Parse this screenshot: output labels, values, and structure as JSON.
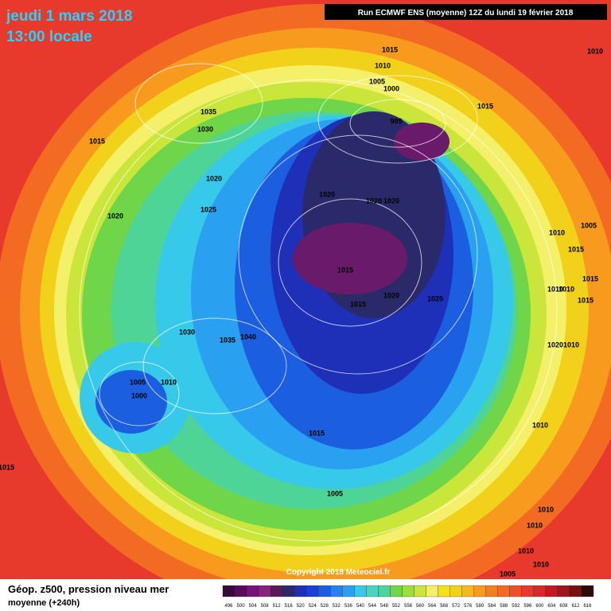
{
  "header": {
    "date": "jeudi 1 mars 2018",
    "time": "13:00 locale",
    "run": "Run ECMWF ENS (moyenne) 12Z du lundi 19 février 2018"
  },
  "copyright": "Copyright 2018 Meteociel.fr",
  "footer": {
    "title": "Géop. z500, pression niveau mer",
    "subtitle": "moyenne  (+240h)"
  },
  "isobar_labels": [
    1015,
    1010,
    1005,
    1000,
    995,
    1015,
    1010,
    1035,
    1030,
    1015,
    1020,
    1025,
    1020,
    1020,
    1020,
    1020,
    1015,
    1015,
    1020,
    1025,
    1010,
    1005,
    1015,
    1015,
    1010,
    1010,
    1015,
    1020,
    1010,
    1030,
    1035,
    1040,
    1005,
    1010,
    1000,
    1015,
    1015,
    1010,
    1005,
    1010,
    1010,
    1010,
    1010,
    1005
  ],
  "legend": {
    "values": [
      496,
      500,
      504,
      508,
      512,
      516,
      520,
      524,
      528,
      532,
      536,
      540,
      544,
      548,
      552,
      556,
      560,
      564,
      568,
      572,
      576,
      580,
      584,
      588,
      592,
      596,
      600,
      604,
      608,
      612,
      616
    ],
    "colors": [
      "#3a0a3a",
      "#5a0a5a",
      "#7a107a",
      "#8a2080",
      "#5a1a5a",
      "#2a2a6a",
      "#1e2fb8",
      "#1b3fd8",
      "#1b5fe0",
      "#2a80f0",
      "#2aa0f0",
      "#37c9e9",
      "#4bd4c0",
      "#4bd4a0",
      "#6fd64a",
      "#9ae03a",
      "#cbe63a",
      "#f5f06a",
      "#f2e11b",
      "#f2d11b",
      "#f7b81e",
      "#f79a1e",
      "#f3801e",
      "#f36a22",
      "#ee5028",
      "#e8392d",
      "#d8282a",
      "#c01a22",
      "#a0141c",
      "#781010",
      "#300808"
    ]
  }
}
